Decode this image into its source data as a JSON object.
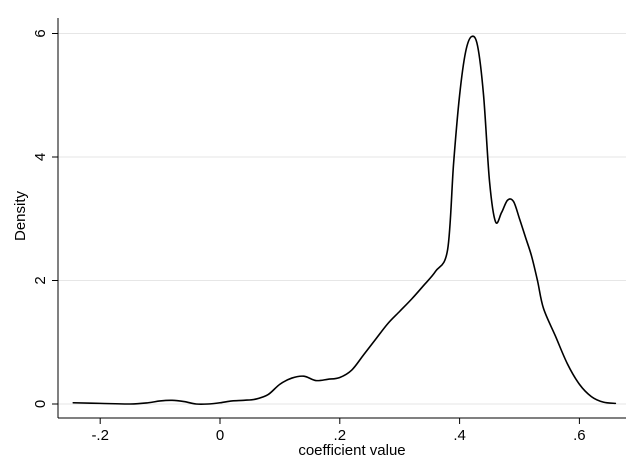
{
  "chart_data": {
    "type": "line",
    "title": "",
    "xlabel": "coefficient value",
    "ylabel": "Density",
    "xlim": [
      -0.25,
      0.67
    ],
    "ylim": [
      0,
      6.1
    ],
    "grid": "horizontal",
    "x_ticks": [
      {
        "value": -0.2,
        "label": "-.2"
      },
      {
        "value": 0,
        "label": "0"
      },
      {
        "value": 0.2,
        "label": ".2"
      },
      {
        "value": 0.4,
        "label": ".4"
      },
      {
        "value": 0.6,
        "label": ".6"
      }
    ],
    "y_ticks": [
      {
        "value": 0,
        "label": "0"
      },
      {
        "value": 2,
        "label": "2"
      },
      {
        "value": 4,
        "label": "4"
      },
      {
        "value": 6,
        "label": "6"
      }
    ],
    "series": [
      {
        "line_color": "#000000",
        "x": [
          -0.245,
          -0.2,
          -0.15,
          -0.12,
          -0.1,
          -0.08,
          -0.06,
          -0.04,
          -0.02,
          0.0,
          0.02,
          0.04,
          0.06,
          0.08,
          0.1,
          0.12,
          0.14,
          0.16,
          0.18,
          0.2,
          0.22,
          0.24,
          0.26,
          0.28,
          0.3,
          0.32,
          0.34,
          0.36,
          0.38,
          0.39,
          0.4,
          0.41,
          0.42,
          0.43,
          0.44,
          0.45,
          0.46,
          0.47,
          0.48,
          0.49,
          0.5,
          0.51,
          0.52,
          0.53,
          0.54,
          0.56,
          0.58,
          0.6,
          0.62,
          0.64,
          0.66
        ],
        "y": [
          0.02,
          0.01,
          0.0,
          0.02,
          0.05,
          0.06,
          0.04,
          0.0,
          0.0,
          0.02,
          0.05,
          0.06,
          0.08,
          0.15,
          0.32,
          0.42,
          0.45,
          0.38,
          0.4,
          0.43,
          0.55,
          0.8,
          1.05,
          1.3,
          1.5,
          1.7,
          1.92,
          2.15,
          2.5,
          3.9,
          5.0,
          5.7,
          5.95,
          5.8,
          5.0,
          3.6,
          2.95,
          3.1,
          3.3,
          3.28,
          3.0,
          2.7,
          2.4,
          2.0,
          1.55,
          1.1,
          0.65,
          0.32,
          0.12,
          0.03,
          0.01
        ]
      }
    ]
  }
}
